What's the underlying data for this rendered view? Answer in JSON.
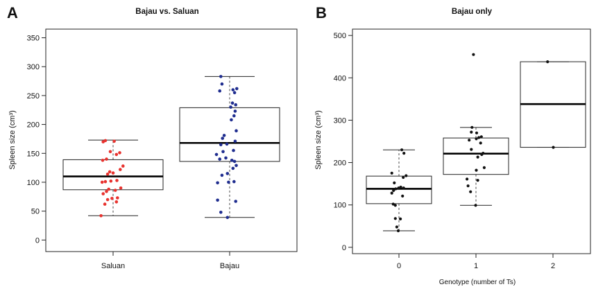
{
  "panels": [
    {
      "letter": "A",
      "title": "Bajau vs. Saluan",
      "ylabel": "Spleen size (cm³)",
      "xlabel": "",
      "yticks": [
        "0",
        "50",
        "100",
        "150",
        "200",
        "250",
        "300",
        "350"
      ]
    },
    {
      "letter": "B",
      "title": "Bajau only",
      "ylabel": "Spleen size (cm³)",
      "xlabel": "Genotype (number of Ts)",
      "yticks": [
        "0",
        "100",
        "200",
        "300",
        "400",
        "500"
      ]
    }
  ],
  "chart_data": [
    {
      "type": "box",
      "title": "Bajau vs. Saluan",
      "ylabel": "Spleen size (cm³)",
      "ylim": [
        -20,
        365
      ],
      "yticks": [
        0,
        50,
        100,
        150,
        200,
        250,
        300,
        350
      ],
      "categories": [
        "Saluan",
        "Bajau"
      ],
      "boxes": [
        {
          "category": "Saluan",
          "min": 42,
          "q1": 87,
          "median": 110,
          "q3": 139,
          "max": 173,
          "color": "#e8322e"
        },
        {
          "category": "Bajau",
          "min": 39,
          "q1": 136,
          "median": 168,
          "q3": 229,
          "max": 283,
          "color": "#1f2d8f"
        }
      ],
      "points": [
        {
          "category": "Saluan",
          "jitter": -0.22,
          "y": 42
        },
        {
          "category": "Saluan",
          "jitter": -0.15,
          "y": 62
        },
        {
          "category": "Saluan",
          "jitter": 0.06,
          "y": 66
        },
        {
          "category": "Saluan",
          "jitter": -0.1,
          "y": 70
        },
        {
          "category": "Saluan",
          "jitter": -0.02,
          "y": 72
        },
        {
          "category": "Saluan",
          "jitter": 0.08,
          "y": 73
        },
        {
          "category": "Saluan",
          "jitter": -0.18,
          "y": 80
        },
        {
          "category": "Saluan",
          "jitter": -0.12,
          "y": 84
        },
        {
          "category": "Saluan",
          "jitter": 0.04,
          "y": 86
        },
        {
          "category": "Saluan",
          "jitter": -0.08,
          "y": 88
        },
        {
          "category": "Saluan",
          "jitter": 0.14,
          "y": 90
        },
        {
          "category": "Saluan",
          "jitter": -0.2,
          "y": 100
        },
        {
          "category": "Saluan",
          "jitter": -0.14,
          "y": 101
        },
        {
          "category": "Saluan",
          "jitter": -0.04,
          "y": 102
        },
        {
          "category": "Saluan",
          "jitter": 0.07,
          "y": 103
        },
        {
          "category": "Saluan",
          "jitter": -0.1,
          "y": 114
        },
        {
          "category": "Saluan",
          "jitter": 0.0,
          "y": 116
        },
        {
          "category": "Saluan",
          "jitter": -0.06,
          "y": 118
        },
        {
          "category": "Saluan",
          "jitter": 0.13,
          "y": 122
        },
        {
          "category": "Saluan",
          "jitter": 0.18,
          "y": 128
        },
        {
          "category": "Saluan",
          "jitter": -0.19,
          "y": 138
        },
        {
          "category": "Saluan",
          "jitter": -0.12,
          "y": 140
        },
        {
          "category": "Saluan",
          "jitter": 0.06,
          "y": 148
        },
        {
          "category": "Saluan",
          "jitter": 0.12,
          "y": 151
        },
        {
          "category": "Saluan",
          "jitter": -0.05,
          "y": 153
        },
        {
          "category": "Saluan",
          "jitter": -0.18,
          "y": 170
        },
        {
          "category": "Saluan",
          "jitter": -0.14,
          "y": 172
        },
        {
          "category": "Saluan",
          "jitter": 0.02,
          "y": 171
        },
        {
          "category": "Bajau",
          "jitter": -0.04,
          "y": 39
        },
        {
          "category": "Bajau",
          "jitter": -0.16,
          "y": 48
        },
        {
          "category": "Bajau",
          "jitter": -0.22,
          "y": 69
        },
        {
          "category": "Bajau",
          "jitter": 0.11,
          "y": 67
        },
        {
          "category": "Bajau",
          "jitter": -0.22,
          "y": 99
        },
        {
          "category": "Bajau",
          "jitter": -0.02,
          "y": 100
        },
        {
          "category": "Bajau",
          "jitter": 0.08,
          "y": 101
        },
        {
          "category": "Bajau",
          "jitter": -0.14,
          "y": 112
        },
        {
          "category": "Bajau",
          "jitter": -0.04,
          "y": 115
        },
        {
          "category": "Bajau",
          "jitter": 0.06,
          "y": 124
        },
        {
          "category": "Bajau",
          "jitter": 0.12,
          "y": 129
        },
        {
          "category": "Bajau",
          "jitter": -0.18,
          "y": 140
        },
        {
          "category": "Bajau",
          "jitter": -0.07,
          "y": 142
        },
        {
          "category": "Bajau",
          "jitter": 0.04,
          "y": 138
        },
        {
          "category": "Bajau",
          "jitter": 0.09,
          "y": 136
        },
        {
          "category": "Bajau",
          "jitter": -0.24,
          "y": 148
        },
        {
          "category": "Bajau",
          "jitter": -0.12,
          "y": 153
        },
        {
          "category": "Bajau",
          "jitter": 0.07,
          "y": 155
        },
        {
          "category": "Bajau",
          "jitter": -0.16,
          "y": 165
        },
        {
          "category": "Bajau",
          "jitter": -0.05,
          "y": 166
        },
        {
          "category": "Bajau",
          "jitter": 0.1,
          "y": 171
        },
        {
          "category": "Bajau",
          "jitter": -0.13,
          "y": 176
        },
        {
          "category": "Bajau",
          "jitter": -0.1,
          "y": 181
        },
        {
          "category": "Bajau",
          "jitter": 0.12,
          "y": 189
        },
        {
          "category": "Bajau",
          "jitter": 0.03,
          "y": 208
        },
        {
          "category": "Bajau",
          "jitter": 0.08,
          "y": 215
        },
        {
          "category": "Bajau",
          "jitter": 0.1,
          "y": 223
        },
        {
          "category": "Bajau",
          "jitter": 0.02,
          "y": 230
        },
        {
          "category": "Bajau",
          "jitter": 0.05,
          "y": 237
        },
        {
          "category": "Bajau",
          "jitter": 0.11,
          "y": 234
        },
        {
          "category": "Bajau",
          "jitter": -0.18,
          "y": 258
        },
        {
          "category": "Bajau",
          "jitter": 0.09,
          "y": 255
        },
        {
          "category": "Bajau",
          "jitter": 0.13,
          "y": 262
        },
        {
          "category": "Bajau",
          "jitter": 0.06,
          "y": 260
        },
        {
          "category": "Bajau",
          "jitter": -0.14,
          "y": 270
        },
        {
          "category": "Bajau",
          "jitter": -0.16,
          "y": 283
        }
      ]
    },
    {
      "type": "box",
      "title": "Bajau only",
      "xlabel": "Genotype (number of Ts)",
      "ylabel": "Spleen size (cm³)",
      "ylim": [
        -15,
        515
      ],
      "yticks": [
        0,
        100,
        200,
        300,
        400,
        500
      ],
      "categories": [
        "0",
        "1",
        "2"
      ],
      "boxes": [
        {
          "category": "0",
          "min": 39,
          "q1": 103,
          "median": 138,
          "q3": 168,
          "max": 230
        },
        {
          "category": "1",
          "min": 99,
          "q1": 172,
          "median": 221,
          "q3": 258,
          "max": 283
        },
        {
          "category": "2",
          "min": 236,
          "q1": 236,
          "median": 338,
          "q3": 438,
          "max": 438
        }
      ],
      "points": [
        {
          "category": "0",
          "jitter": -0.02,
          "y": 39
        },
        {
          "category": "0",
          "jitter": -0.06,
          "y": 48
        },
        {
          "category": "0",
          "jitter": -0.1,
          "y": 68
        },
        {
          "category": "0",
          "jitter": 0.04,
          "y": 67
        },
        {
          "category": "0",
          "jitter": -0.16,
          "y": 102
        },
        {
          "category": "0",
          "jitter": -0.1,
          "y": 99
        },
        {
          "category": "0",
          "jitter": 0.1,
          "y": 121
        },
        {
          "category": "0",
          "jitter": -0.2,
          "y": 128
        },
        {
          "category": "0",
          "jitter": -0.15,
          "y": 134
        },
        {
          "category": "0",
          "jitter": -0.09,
          "y": 138
        },
        {
          "category": "0",
          "jitter": -0.01,
          "y": 140
        },
        {
          "category": "0",
          "jitter": 0.05,
          "y": 142
        },
        {
          "category": "0",
          "jitter": 0.13,
          "y": 140
        },
        {
          "category": "0",
          "jitter": -0.13,
          "y": 152
        },
        {
          "category": "0",
          "jitter": 0.12,
          "y": 165
        },
        {
          "category": "0",
          "jitter": 0.2,
          "y": 169
        },
        {
          "category": "0",
          "jitter": -0.2,
          "y": 175
        },
        {
          "category": "0",
          "jitter": 0.14,
          "y": 222
        },
        {
          "category": "0",
          "jitter": 0.08,
          "y": 230
        },
        {
          "category": "1",
          "jitter": -0.01,
          "y": 99
        },
        {
          "category": "1",
          "jitter": -0.15,
          "y": 131
        },
        {
          "category": "1",
          "jitter": -0.22,
          "y": 145
        },
        {
          "category": "1",
          "jitter": -0.25,
          "y": 161
        },
        {
          "category": "1",
          "jitter": 0.05,
          "y": 158
        },
        {
          "category": "1",
          "jitter": 0.01,
          "y": 182
        },
        {
          "category": "1",
          "jitter": 0.23,
          "y": 188
        },
        {
          "category": "1",
          "jitter": 0.05,
          "y": 213
        },
        {
          "category": "1",
          "jitter": 0.16,
          "y": 219
        },
        {
          "category": "1",
          "jitter": 0.2,
          "y": 222
        },
        {
          "category": "1",
          "jitter": -0.13,
          "y": 231
        },
        {
          "category": "1",
          "jitter": 0.13,
          "y": 246
        },
        {
          "category": "1",
          "jitter": -0.19,
          "y": 253
        },
        {
          "category": "1",
          "jitter": 0.01,
          "y": 256
        },
        {
          "category": "1",
          "jitter": 0.08,
          "y": 259
        },
        {
          "category": "1",
          "jitter": 0.15,
          "y": 261
        },
        {
          "category": "1",
          "jitter": -0.13,
          "y": 272
        },
        {
          "category": "1",
          "jitter": 0.02,
          "y": 270
        },
        {
          "category": "1",
          "jitter": -0.11,
          "y": 283
        },
        {
          "category": "1",
          "jitter": -0.07,
          "y": 455
        },
        {
          "category": "2",
          "jitter": -0.15,
          "y": 438
        },
        {
          "category": "2",
          "jitter": 0.01,
          "y": 236
        }
      ]
    }
  ]
}
